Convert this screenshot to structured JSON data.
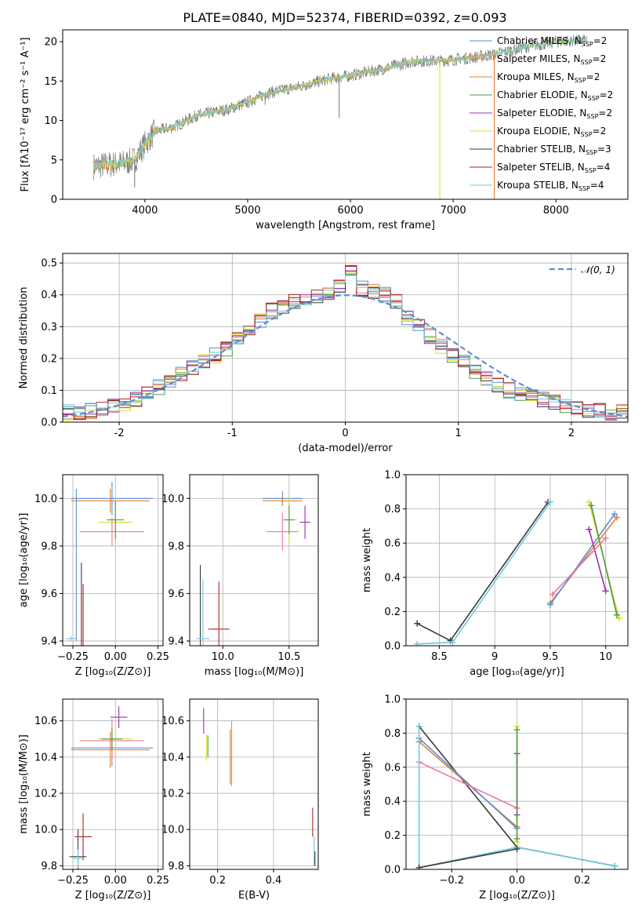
{
  "figure_title": "PLATE=0840, MJD=52374, FIBERID=0392, z=0.093",
  "colors": {
    "chabrier_miles": "#5b8fd6",
    "salpeter_miles": "#e8799f",
    "kroupa_miles": "#d9823a",
    "chabrier_elodie": "#4f9a4f",
    "salpeter_elodie": "#9b2fae",
    "kroupa_elodie": "#d5dd2f",
    "chabrier_stelib": "#3a3a3a",
    "salpeter_stelib": "#b22222",
    "kroupa_stelib": "#6fc8dc",
    "data": "#7a7a7a",
    "fit": "#ee7a3a",
    "miles_bar": "#e36c2a",
    "normal": "#5b8fd6",
    "grid": "#b0b0b0"
  },
  "chart_data": [
    {
      "id": "spectrum",
      "type": "line",
      "title": "PLATE=0840, MJD=52374, FIBERID=0392, z=0.093",
      "xlabel": "wavelength [Angstrom, rest frame]",
      "ylabel": "Flux [fλ10⁻¹⁷ erg cm⁻² s⁻¹ A⁻¹]",
      "xlim": [
        3200,
        8700
      ],
      "ylim": [
        0,
        21.5
      ],
      "xticks": [
        4000,
        5000,
        6000,
        7000,
        8000
      ],
      "yticks": [
        0,
        5,
        10,
        15,
        20
      ],
      "grid": false,
      "legend_position": "top-right",
      "legend": [
        {
          "label": "Chabrier MILES, N",
          "sub": "SSP",
          "tail": "=2",
          "color": "chabrier_miles"
        },
        {
          "label": "Salpeter MILES, N",
          "sub": "SSP",
          "tail": "=2",
          "color": "salpeter_miles"
        },
        {
          "label": "Kroupa MILES, N",
          "sub": "SSP",
          "tail": "=2",
          "color": "kroupa_miles"
        },
        {
          "label": "Chabrier ELODIE, N",
          "sub": "SSP",
          "tail": "=2",
          "color": "chabrier_elodie"
        },
        {
          "label": "Salpeter ELODIE, N",
          "sub": "SSP",
          "tail": "=2",
          "color": "salpeter_elodie"
        },
        {
          "label": "Kroupa ELODIE, N",
          "sub": "SSP",
          "tail": "=2",
          "color": "kroupa_elodie"
        },
        {
          "label": "Chabrier STELIB, N",
          "sub": "SSP",
          "tail": "=3",
          "color": "chabrier_stelib"
        },
        {
          "label": "Salpeter STELIB, N",
          "sub": "SSP",
          "tail": "=4",
          "color": "salpeter_stelib"
        },
        {
          "label": "Kroupa STELIB, N",
          "sub": "SSP",
          "tail": "=4",
          "color": "kroupa_stelib"
        }
      ],
      "trend_wavelength": [
        3500,
        3650,
        3800,
        3900,
        4000,
        4100,
        4300,
        4500,
        4800,
        5000,
        5200,
        5500,
        5800,
        6000,
        6300,
        6600,
        6900,
        7200,
        7400,
        7700,
        8000,
        8300
      ],
      "trend_flux": [
        4.2,
        4.4,
        4.6,
        5.0,
        7.0,
        8.6,
        9.3,
        10.6,
        11.4,
        12.3,
        13.5,
        14.3,
        15.3,
        15.7,
        16.5,
        17.5,
        17.6,
        18.0,
        18.4,
        19.3,
        20.0,
        20.2
      ],
      "spikes": [
        {
          "x": 5890,
          "y": 10.3
        },
        {
          "x": 5170,
          "y": 12.0
        },
        {
          "x": 6870,
          "y": 0.0
        },
        {
          "x": 7400,
          "y": 0.0
        },
        {
          "x": 3900,
          "y": 1.5
        },
        {
          "x": 4860,
          "y": 11.0
        }
      ]
    },
    {
      "id": "residual_histogram",
      "type": "line",
      "xlabel": "(data-model)/error",
      "ylabel": "Normed distribution",
      "xlim": [
        -2.5,
        2.5
      ],
      "ylim": [
        0,
        0.53
      ],
      "xticks": [
        -2,
        -1,
        0,
        1,
        2
      ],
      "yticks": [
        0.0,
        0.1,
        0.2,
        0.3,
        0.4,
        0.5
      ],
      "grid": true,
      "legend_position": "top-right",
      "legend": [
        {
          "label": "𝒩(0, 1)",
          "color": "normal",
          "style": "dashed"
        }
      ],
      "bin_width": 0.1,
      "bin_start": -2.5,
      "reference_values": [
        0.03,
        0.03,
        0.035,
        0.04,
        0.05,
        0.06,
        0.07,
        0.09,
        0.11,
        0.13,
        0.15,
        0.17,
        0.19,
        0.21,
        0.23,
        0.26,
        0.29,
        0.32,
        0.35,
        0.36,
        0.38,
        0.39,
        0.4,
        0.41,
        0.43,
        0.47,
        0.42,
        0.41,
        0.4,
        0.38,
        0.33,
        0.3,
        0.27,
        0.24,
        0.21,
        0.19,
        0.16,
        0.14,
        0.12,
        0.1,
        0.09,
        0.08,
        0.07,
        0.06,
        0.05,
        0.05,
        0.04,
        0.035,
        0.03,
        0.03
      ],
      "normal_curve": {
        "mu": 0,
        "sigma": 1
      }
    },
    {
      "id": "age_vs_metallicity",
      "type": "scatter",
      "xlabel": "Z [log₁₀(Z/Z⊙)]",
      "ylabel": "age  [log₁₀(age/yr)]",
      "xlim": [
        -0.31,
        0.28
      ],
      "ylim": [
        9.38,
        10.1
      ],
      "xticks": [
        -0.25,
        0.0,
        0.25
      ],
      "xticklabels": [
        "−0.25",
        "0.00",
        "0.25"
      ],
      "yticks": [
        9.4,
        9.6,
        9.8,
        10.0
      ],
      "grid": true,
      "crosses": [
        {
          "x": -0.02,
          "y": 10.0,
          "xerr": 0.24,
          "yerr": 0.07,
          "color": "chabrier_miles"
        },
        {
          "x": -0.03,
          "y": 9.99,
          "xerr": 0.23,
          "yerr": 0.05,
          "color": "kroupa_miles"
        },
        {
          "x": -0.02,
          "y": 9.86,
          "xerr": 0.19,
          "yerr": 0.06,
          "color": "salpeter_miles"
        },
        {
          "x": 0.0,
          "y": 9.9,
          "xerr": 0.1,
          "yerr": 0.12,
          "color": "kroupa_elodie"
        },
        {
          "x": 0.0,
          "y": 9.91,
          "xerr": 0.05,
          "yerr": 0.08,
          "color": "chabrier_elodie"
        },
        {
          "x": -0.2,
          "y": 9.52,
          "xerr": 0.0,
          "yerr": 0.21,
          "color": "chabrier_stelib"
        },
        {
          "x": -0.19,
          "y": 9.5,
          "xerr": 0.0,
          "yerr": 0.14,
          "color": "salpeter_stelib"
        },
        {
          "x": -0.26,
          "y": 9.41,
          "xerr": 0.03,
          "yerr": 0.01,
          "color": "kroupa_stelib"
        },
        {
          "x": -0.23,
          "y": 9.72,
          "xerr": 0.0,
          "yerr": 0.32,
          "color": "chabrier_miles"
        }
      ]
    },
    {
      "id": "age_vs_mass",
      "type": "scatter",
      "xlabel": "mass [log₁₀(M/M⊙)]",
      "ylabel": "",
      "xlim": [
        9.75,
        10.72
      ],
      "ylim": [
        9.38,
        10.1
      ],
      "xticks": [
        10.0,
        10.5
      ],
      "xticklabels": [
        "10.0",
        "10.5"
      ],
      "yticks": [
        9.4,
        9.6,
        9.8,
        10.0
      ],
      "grid": true,
      "crosses": [
        {
          "x": 10.45,
          "y": 10.0,
          "xerr": 0.15,
          "yerr": 0.03,
          "color": "chabrier_miles"
        },
        {
          "x": 10.45,
          "y": 9.99,
          "xerr": 0.15,
          "yerr": 0.02,
          "color": "kroupa_miles"
        },
        {
          "x": 10.45,
          "y": 9.86,
          "xerr": 0.12,
          "yerr": 0.08,
          "color": "salpeter_miles"
        },
        {
          "x": 10.5,
          "y": 9.91,
          "xerr": 0.06,
          "yerr": 0.1,
          "color": "kroupa_elodie"
        },
        {
          "x": 10.5,
          "y": 9.91,
          "xerr": 0.04,
          "yerr": 0.06,
          "color": "chabrier_elodie"
        },
        {
          "x": 10.62,
          "y": 9.9,
          "xerr": 0.04,
          "yerr": 0.07,
          "color": "salpeter_elodie"
        },
        {
          "x": 9.83,
          "y": 9.52,
          "xerr": 0.0,
          "yerr": 0.2,
          "color": "chabrier_stelib"
        },
        {
          "x": 9.97,
          "y": 9.45,
          "xerr": 0.08,
          "yerr": 0.2,
          "color": "salpeter_stelib"
        },
        {
          "x": 9.85,
          "y": 9.41,
          "xerr": 0.05,
          "yerr": 0.25,
          "color": "kroupa_stelib"
        }
      ]
    },
    {
      "id": "weight_vs_age",
      "type": "line",
      "xlabel": "age  [log₁₀(age/yr)]",
      "ylabel": "mass weight",
      "xlim": [
        8.2,
        10.2
      ],
      "ylim": [
        0,
        1.0
      ],
      "xticks": [
        8.5,
        9.0,
        9.5,
        10.0
      ],
      "yticks": [
        0.0,
        0.2,
        0.4,
        0.6,
        0.8,
        1.0
      ],
      "grid": true,
      "series": [
        {
          "color": "chabrier_stelib",
          "x": [
            8.3,
            8.6,
            9.48
          ],
          "y": [
            0.13,
            0.03,
            0.84
          ]
        },
        {
          "color": "kroupa_stelib",
          "x": [
            8.3,
            8.62,
            9.5
          ],
          "y": [
            0.01,
            0.02,
            0.84
          ]
        },
        {
          "color": "kroupa_miles",
          "x": [
            9.5,
            10.1
          ],
          "y": [
            0.25,
            0.75
          ]
        },
        {
          "color": "chabrier_miles",
          "x": [
            9.5,
            10.08
          ],
          "y": [
            0.24,
            0.77
          ]
        },
        {
          "color": "salpeter_elodie",
          "x": [
            9.85,
            10.0
          ],
          "y": [
            0.68,
            0.32
          ]
        },
        {
          "color": "kroupa_elodie",
          "x": [
            9.85,
            10.12
          ],
          "y": [
            0.84,
            0.16
          ]
        },
        {
          "color": "chabrier_elodie",
          "x": [
            9.87,
            10.1
          ],
          "y": [
            0.82,
            0.18
          ]
        },
        {
          "color": "salpeter_miles",
          "x": [
            9.52,
            10.0
          ],
          "y": [
            0.3,
            0.63
          ]
        }
      ]
    },
    {
      "id": "mass_vs_metallicity",
      "type": "scatter",
      "xlabel": "Z [log₁₀(Z/Z⊙)]",
      "ylabel": "mass [log₁₀(M/M⊙)]",
      "xlim": [
        -0.31,
        0.28
      ],
      "ylim": [
        9.78,
        10.72
      ],
      "xticks": [
        -0.25,
        0.0,
        0.25
      ],
      "xticklabels": [
        "−0.25",
        "0.00",
        "0.25"
      ],
      "yticks": [
        9.8,
        10.0,
        10.2,
        10.4,
        10.6
      ],
      "grid": true,
      "crosses": [
        {
          "x": -0.02,
          "y": 10.45,
          "xerr": 0.24,
          "yerr": 0.1,
          "color": "chabrier_miles"
        },
        {
          "x": -0.03,
          "y": 10.44,
          "xerr": 0.23,
          "yerr": 0.1,
          "color": "kroupa_miles"
        },
        {
          "x": -0.02,
          "y": 10.49,
          "xerr": 0.19,
          "yerr": 0.12,
          "color": "salpeter_miles"
        },
        {
          "x": 0.0,
          "y": 10.5,
          "xerr": 0.1,
          "yerr": 0.1,
          "color": "kroupa_elodie"
        },
        {
          "x": -0.02,
          "y": 10.5,
          "xerr": 0.06,
          "yerr": 0.06,
          "color": "chabrier_elodie"
        },
        {
          "x": 0.02,
          "y": 10.62,
          "xerr": 0.05,
          "yerr": 0.06,
          "color": "salpeter_elodie"
        },
        {
          "x": -0.22,
          "y": 9.85,
          "xerr": 0.05,
          "yerr": 0.15,
          "color": "chabrier_stelib"
        },
        {
          "x": -0.19,
          "y": 9.96,
          "xerr": 0.05,
          "yerr": 0.13,
          "color": "salpeter_stelib"
        },
        {
          "x": -0.22,
          "y": 9.84,
          "xerr": 0.03,
          "yerr": 0.05,
          "color": "kroupa_stelib"
        }
      ]
    },
    {
      "id": "mass_vs_ebv",
      "type": "scatter",
      "xlabel": "E(B-V)",
      "ylabel": "",
      "xlim": [
        0.1,
        0.56
      ],
      "ylim": [
        9.78,
        10.72
      ],
      "xticks": [
        0.2,
        0.4
      ],
      "xticklabels": [
        "0.2",
        "0.4"
      ],
      "yticks": [
        9.8,
        10.0,
        10.2,
        10.4,
        10.6
      ],
      "grid": true,
      "crosses": [
        {
          "x": 0.15,
          "y": 10.6,
          "xerr": 0.0,
          "yerr": 0.07,
          "color": "salpeter_elodie"
        },
        {
          "x": 0.16,
          "y": 10.45,
          "xerr": 0.0,
          "yerr": 0.07,
          "color": "kroupa_elodie"
        },
        {
          "x": 0.165,
          "y": 10.46,
          "xerr": 0.0,
          "yerr": 0.06,
          "color": "chabrier_elodie"
        },
        {
          "x": 0.25,
          "y": 10.42,
          "xerr": 0.0,
          "yerr": 0.18,
          "color": "salpeter_miles"
        },
        {
          "x": 0.245,
          "y": 10.4,
          "xerr": 0.0,
          "yerr": 0.15,
          "color": "kroupa_miles"
        },
        {
          "x": 0.54,
          "y": 10.04,
          "xerr": 0.0,
          "yerr": 0.08,
          "color": "salpeter_stelib"
        },
        {
          "x": 0.545,
          "y": 9.88,
          "xerr": 0.0,
          "yerr": 0.08,
          "color": "kroupa_stelib"
        },
        {
          "x": 0.548,
          "y": 9.84,
          "xerr": 0.0,
          "yerr": 0.04,
          "color": "chabrier_stelib"
        }
      ]
    },
    {
      "id": "weight_vs_metallicity",
      "type": "line",
      "xlabel": "Z [log₁₀(Z/Z⊙)]",
      "ylabel": "mass weight",
      "xlim": [
        -0.34,
        0.34
      ],
      "ylim": [
        0,
        1.0
      ],
      "xticks": [
        -0.2,
        0.0,
        0.2
      ],
      "xticklabels": [
        "−0.2",
        "0.0",
        "0.2"
      ],
      "yticks": [
        0.0,
        0.2,
        0.4,
        0.6,
        0.8,
        1.0
      ],
      "grid": true,
      "series": [
        {
          "color": "chabrier_stelib",
          "x": [
            -0.3,
            0.0,
            0.3
          ],
          "y": [
            0.84,
            0.13,
            0.02
          ]
        },
        {
          "color": "kroupa_miles",
          "x": [
            -0.3,
            0.0
          ],
          "y": [
            0.75,
            0.25
          ]
        },
        {
          "color": "chabrier_miles",
          "x": [
            -0.3,
            0.0
          ],
          "y": [
            0.77,
            0.24
          ]
        },
        {
          "color": "salpeter_miles",
          "x": [
            -0.3,
            0.0
          ],
          "y": [
            0.63,
            0.36
          ]
        },
        {
          "color": "kroupa_stelib",
          "x": [
            -0.3,
            -0.3,
            0.0,
            0.3
          ],
          "y": [
            0.84,
            0.01,
            0.13,
            0.02
          ]
        },
        {
          "color": "chabrier_stelib",
          "x": [
            -0.3,
            0.0
          ],
          "y": [
            0.01,
            0.12
          ]
        },
        {
          "color": "kroupa_elodie",
          "x": [
            0.0,
            0.0
          ],
          "y": [
            0.84,
            0.16
          ]
        },
        {
          "color": "salpeter_elodie",
          "x": [
            0.0,
            0.0
          ],
          "y": [
            0.68,
            0.32
          ]
        },
        {
          "color": "chabrier_elodie",
          "x": [
            0.0,
            0.0
          ],
          "y": [
            0.82,
            0.18
          ]
        }
      ]
    }
  ]
}
